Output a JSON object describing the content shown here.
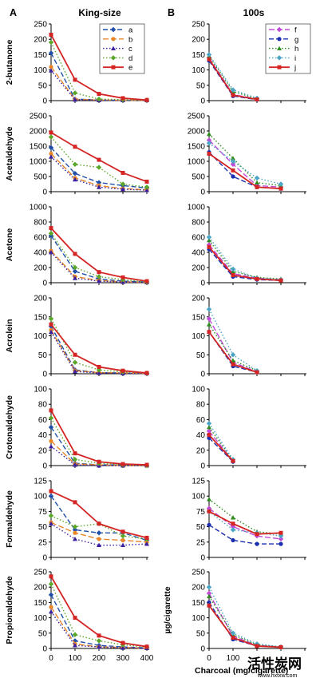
{
  "figure": {
    "panel_a": "A",
    "panel_b": "B",
    "col_a_title": "King-size",
    "col_b_title": "100s",
    "xlabel": "Charcoal (mg/cigarette)",
    "ylabel_b": "µg/cigarette",
    "watermark": "活性炭网",
    "watermark_sub": "www.hxtxw.com"
  },
  "colors": {
    "a": "#1f4fa8",
    "b": "#e8862a",
    "c": "#3b1f9e",
    "d": "#5aa629",
    "e": "#d42424",
    "f": "#c04ad8",
    "g": "#1b2fb0",
    "h": "#2e8b1e",
    "i": "#4aa4c6",
    "j": "#d42424"
  },
  "legend_a": [
    "a",
    "b",
    "c",
    "d",
    "e"
  ],
  "legend_b": [
    "f",
    "g",
    "h",
    "i",
    "j"
  ],
  "chart_data": [
    {
      "type": "line",
      "column": "King-size",
      "ylabel": "2-butanone",
      "x": [
        0,
        100,
        200,
        300,
        400
      ],
      "ylim": [
        0,
        250
      ],
      "yticks": [
        0,
        50,
        100,
        150,
        200,
        250
      ],
      "series": [
        {
          "name": "a",
          "values": [
            155,
            5,
            2,
            1,
            1
          ]
        },
        {
          "name": "b",
          "values": [
            110,
            4,
            2,
            1,
            1
          ]
        },
        {
          "name": "c",
          "values": [
            98,
            3,
            1,
            1,
            1
          ]
        },
        {
          "name": "d",
          "values": [
            190,
            25,
            5,
            3,
            2
          ]
        },
        {
          "name": "e",
          "values": [
            215,
            68,
            22,
            8,
            2
          ]
        }
      ]
    },
    {
      "type": "line",
      "column": "100s",
      "ylabel": "",
      "x": [
        0,
        100,
        200
      ],
      "ylim": [
        0,
        250
      ],
      "yticks": [
        0,
        50,
        100,
        150,
        200,
        250
      ],
      "series": [
        {
          "name": "f",
          "values": [
            140,
            20,
            5
          ]
        },
        {
          "name": "g",
          "values": [
            130,
            15,
            3
          ]
        },
        {
          "name": "h",
          "values": [
            145,
            30,
            6
          ]
        },
        {
          "name": "i",
          "values": [
            150,
            35,
            8
          ]
        },
        {
          "name": "j",
          "values": [
            135,
            18,
            4
          ]
        }
      ]
    },
    {
      "type": "line",
      "column": "King-size",
      "ylabel": "Acetaldehyde",
      "x": [
        0,
        100,
        200,
        300,
        400
      ],
      "ylim": [
        0,
        2500
      ],
      "yticks": [
        0,
        500,
        1000,
        1500,
        2000,
        2500
      ],
      "series": [
        {
          "name": "a",
          "values": [
            1450,
            600,
            300,
            200,
            120
          ]
        },
        {
          "name": "b",
          "values": [
            1250,
            450,
            200,
            100,
            60
          ]
        },
        {
          "name": "c",
          "values": [
            1150,
            400,
            150,
            80,
            50
          ]
        },
        {
          "name": "d",
          "values": [
            1800,
            900,
            800,
            250,
            150
          ]
        },
        {
          "name": "e",
          "values": [
            1950,
            1480,
            1050,
            620,
            330
          ]
        }
      ]
    },
    {
      "type": "line",
      "column": "100s",
      "ylabel": "",
      "x": [
        0,
        100,
        200,
        300
      ],
      "ylim": [
        0,
        2500
      ],
      "yticks": [
        0,
        500,
        1000,
        1500,
        2000,
        2500
      ],
      "series": [
        {
          "name": "f",
          "values": [
            1700,
            900,
            200,
            150
          ]
        },
        {
          "name": "g",
          "values": [
            1300,
            500,
            150,
            100
          ]
        },
        {
          "name": "h",
          "values": [
            1900,
            1100,
            300,
            200
          ]
        },
        {
          "name": "i",
          "values": [
            1600,
            1000,
            450,
            250
          ]
        },
        {
          "name": "j",
          "values": [
            1250,
            700,
            150,
            100
          ]
        }
      ]
    },
    {
      "type": "line",
      "column": "King-size",
      "ylabel": "Acetone",
      "x": [
        0,
        100,
        200,
        300,
        400
      ],
      "ylim": [
        0,
        1000
      ],
      "yticks": [
        0,
        200,
        400,
        600,
        800,
        1000
      ],
      "series": [
        {
          "name": "a",
          "values": [
            620,
            150,
            50,
            20,
            10
          ]
        },
        {
          "name": "b",
          "values": [
            420,
            80,
            30,
            10,
            5
          ]
        },
        {
          "name": "c",
          "values": [
            400,
            60,
            20,
            10,
            5
          ]
        },
        {
          "name": "d",
          "values": [
            650,
            200,
            80,
            40,
            10
          ]
        },
        {
          "name": "e",
          "values": [
            720,
            380,
            140,
            70,
            20
          ]
        }
      ]
    },
    {
      "type": "line",
      "column": "100s",
      "ylabel": "",
      "x": [
        0,
        100,
        200,
        300
      ],
      "ylim": [
        0,
        1000
      ],
      "yticks": [
        0,
        200,
        400,
        600,
        800,
        1000
      ],
      "series": [
        {
          "name": "f",
          "values": [
            500,
            120,
            60,
            40
          ]
        },
        {
          "name": "g",
          "values": [
            440,
            80,
            40,
            30
          ]
        },
        {
          "name": "h",
          "values": [
            560,
            150,
            70,
            50
          ]
        },
        {
          "name": "i",
          "values": [
            600,
            180,
            60,
            40
          ]
        },
        {
          "name": "j",
          "values": [
            470,
            100,
            50,
            30
          ]
        }
      ]
    },
    {
      "type": "line",
      "column": "King-size",
      "ylabel": "Acrolein",
      "x": [
        0,
        100,
        200,
        300,
        400
      ],
      "ylim": [
        0,
        200
      ],
      "yticks": [
        0,
        50,
        100,
        150,
        200
      ],
      "series": [
        {
          "name": "a",
          "values": [
            125,
            10,
            3,
            2,
            1
          ]
        },
        {
          "name": "b",
          "values": [
            115,
            8,
            3,
            2,
            1
          ]
        },
        {
          "name": "c",
          "values": [
            110,
            6,
            2,
            1,
            1
          ]
        },
        {
          "name": "d",
          "values": [
            145,
            30,
            10,
            5,
            2
          ]
        },
        {
          "name": "e",
          "values": [
            130,
            50,
            18,
            8,
            2
          ]
        }
      ]
    },
    {
      "type": "line",
      "column": "100s",
      "ylabel": "",
      "x": [
        0,
        100,
        200
      ],
      "ylim": [
        0,
        200
      ],
      "yticks": [
        0,
        50,
        100,
        150,
        200
      ],
      "series": [
        {
          "name": "f",
          "values": [
            145,
            30,
            5
          ]
        },
        {
          "name": "g",
          "values": [
            110,
            20,
            4
          ]
        },
        {
          "name": "h",
          "values": [
            130,
            35,
            8
          ]
        },
        {
          "name": "i",
          "values": [
            170,
            50,
            8
          ]
        },
        {
          "name": "j",
          "values": [
            110,
            25,
            4
          ]
        }
      ]
    },
    {
      "type": "line",
      "column": "King-size",
      "ylabel": "Crotonaldehyde",
      "x": [
        0,
        100,
        200,
        300,
        400
      ],
      "ylim": [
        0,
        100
      ],
      "yticks": [
        0,
        20,
        40,
        60,
        80,
        100
      ],
      "series": [
        {
          "name": "a",
          "values": [
            50,
            3,
            1,
            1,
            0
          ]
        },
        {
          "name": "b",
          "values": [
            32,
            2,
            1,
            0,
            0
          ]
        },
        {
          "name": "c",
          "values": [
            25,
            1,
            0,
            0,
            0
          ]
        },
        {
          "name": "d",
          "values": [
            62,
            8,
            3,
            1,
            0
          ]
        },
        {
          "name": "e",
          "values": [
            72,
            16,
            5,
            2,
            1
          ]
        }
      ]
    },
    {
      "type": "line",
      "column": "100s",
      "ylabel": "",
      "x": [
        0,
        100
      ],
      "ylim": [
        0,
        100
      ],
      "yticks": [
        0,
        20,
        40,
        60,
        80,
        100
      ],
      "series": [
        {
          "name": "f",
          "values": [
            45,
            6
          ]
        },
        {
          "name": "g",
          "values": [
            36,
            5
          ]
        },
        {
          "name": "h",
          "values": [
            50,
            7
          ]
        },
        {
          "name": "i",
          "values": [
            55,
            8
          ]
        },
        {
          "name": "j",
          "values": [
            40,
            6
          ]
        }
      ]
    },
    {
      "type": "line",
      "column": "King-size",
      "ylabel": "Formaldehyde",
      "x": [
        0,
        100,
        200,
        300,
        400
      ],
      "ylim": [
        0,
        125
      ],
      "yticks": [
        0,
        25,
        50,
        75,
        100,
        125
      ],
      "series": [
        {
          "name": "a",
          "values": [
            100,
            45,
            40,
            40,
            28
          ]
        },
        {
          "name": "b",
          "values": [
            57,
            40,
            30,
            28,
            25
          ]
        },
        {
          "name": "c",
          "values": [
            55,
            30,
            20,
            20,
            22
          ]
        },
        {
          "name": "d",
          "values": [
            68,
            50,
            55,
            35,
            30
          ]
        },
        {
          "name": "e",
          "values": [
            108,
            90,
            55,
            42,
            32
          ]
        }
      ]
    },
    {
      "type": "line",
      "column": "100s",
      "ylabel": "",
      "x": [
        0,
        100,
        200,
        300
      ],
      "ylim": [
        0,
        125
      ],
      "yticks": [
        0,
        25,
        50,
        75,
        100,
        125
      ],
      "series": [
        {
          "name": "f",
          "values": [
            80,
            50,
            35,
            30
          ]
        },
        {
          "name": "g",
          "values": [
            53,
            28,
            22,
            22
          ]
        },
        {
          "name": "h",
          "values": [
            95,
            65,
            42,
            38
          ]
        },
        {
          "name": "i",
          "values": [
            75,
            45,
            40,
            35
          ]
        },
        {
          "name": "j",
          "values": [
            75,
            55,
            38,
            40
          ]
        }
      ]
    },
    {
      "type": "line",
      "column": "King-size",
      "ylabel": "Propionaldehyde",
      "x": [
        0,
        100,
        200,
        300,
        400
      ],
      "ylim": [
        0,
        250
      ],
      "yticks": [
        0,
        50,
        100,
        150,
        200,
        250
      ],
      "series": [
        {
          "name": "a",
          "values": [
            175,
            25,
            10,
            5,
            2
          ]
        },
        {
          "name": "b",
          "values": [
            135,
            15,
            5,
            3,
            1
          ]
        },
        {
          "name": "c",
          "values": [
            120,
            10,
            5,
            2,
            1
          ]
        },
        {
          "name": "d",
          "values": [
            210,
            45,
            25,
            12,
            5
          ]
        },
        {
          "name": "e",
          "values": [
            235,
            100,
            42,
            18,
            6
          ]
        }
      ]
    },
    {
      "type": "line",
      "column": "100s",
      "ylabel": "µg/cigarette",
      "x": [
        0,
        100,
        200,
        300
      ],
      "ylim": [
        0,
        250
      ],
      "yticks": [
        0,
        50,
        100,
        150,
        200,
        250
      ],
      "series": [
        {
          "name": "f",
          "values": [
            180,
            40,
            10,
            5
          ]
        },
        {
          "name": "g",
          "values": [
            150,
            30,
            8,
            4
          ]
        },
        {
          "name": "h",
          "values": [
            170,
            45,
            12,
            6
          ]
        },
        {
          "name": "i",
          "values": [
            200,
            50,
            15,
            5
          ]
        },
        {
          "name": "j",
          "values": [
            140,
            35,
            8,
            4
          ]
        }
      ]
    }
  ]
}
